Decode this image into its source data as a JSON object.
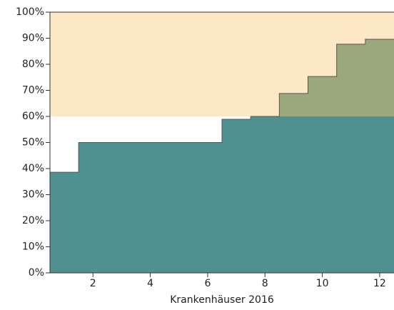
{
  "chart_data": {
    "type": "step",
    "x": [
      1,
      2,
      3,
      4,
      5,
      6,
      7,
      8,
      9,
      10,
      11,
      12
    ],
    "values": [
      38.6,
      50,
      50,
      50,
      50,
      50,
      58.9,
      60,
      68.8,
      75.3,
      87.7,
      89.6
    ],
    "threshold": 60,
    "colors": {
      "below": "#4f9190",
      "above": "#9aa87c",
      "band": "#fde8c6"
    },
    "xlabel": "Krankenhäuser 2016",
    "xlim": [
      0.5,
      12.5
    ],
    "xticks": [
      2,
      4,
      6,
      8,
      10,
      12
    ],
    "ylim": [
      0,
      100
    ],
    "yticks": [
      {
        "value": 0,
        "label": "0%"
      },
      {
        "value": 10,
        "label": "10%"
      },
      {
        "value": 20,
        "label": "20%"
      },
      {
        "value": 30,
        "label": "30%"
      },
      {
        "value": 40,
        "label": "40%"
      },
      {
        "value": 50,
        "label": "50%"
      },
      {
        "value": 60,
        "label": "60%"
      },
      {
        "value": 70,
        "label": "70%"
      },
      {
        "value": 80,
        "label": "80%"
      },
      {
        "value": 90,
        "label": "90%"
      },
      {
        "value": 100,
        "label": "100%"
      }
    ]
  }
}
